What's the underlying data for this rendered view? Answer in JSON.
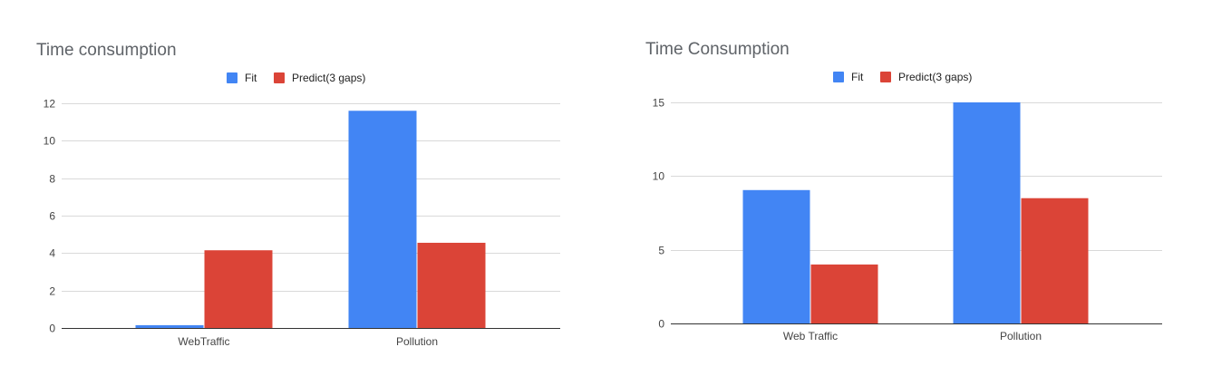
{
  "chart_data": [
    {
      "type": "bar",
      "title": "Time consumption",
      "xlabel": "",
      "ylabel": "",
      "categories": [
        "WebTraffic",
        "Pollution"
      ],
      "series": [
        {
          "name": "Fit",
          "values": [
            0.15,
            11.6
          ],
          "color": "#4285f4"
        },
        {
          "name": "Predict(3 gaps)",
          "values": [
            4.15,
            4.55
          ],
          "color": "#db4437"
        }
      ],
      "ylim": [
        0,
        12
      ],
      "yticks": [
        0,
        2,
        4,
        6,
        8,
        10,
        12
      ],
      "grid": true,
      "legend_position": "top"
    },
    {
      "type": "bar",
      "title": "Time Consumption",
      "xlabel": "",
      "ylabel": "",
      "categories": [
        "Web Traffic",
        "Pollution"
      ],
      "series": [
        {
          "name": "Fit",
          "values": [
            9.05,
            15.0
          ],
          "color": "#4285f4"
        },
        {
          "name": "Predict(3 gaps)",
          "values": [
            4.0,
            8.5
          ],
          "color": "#db4437"
        }
      ],
      "ylim": [
        0,
        15
      ],
      "yticks": [
        0,
        5,
        10,
        15
      ],
      "grid": true,
      "legend_position": "top"
    }
  ]
}
